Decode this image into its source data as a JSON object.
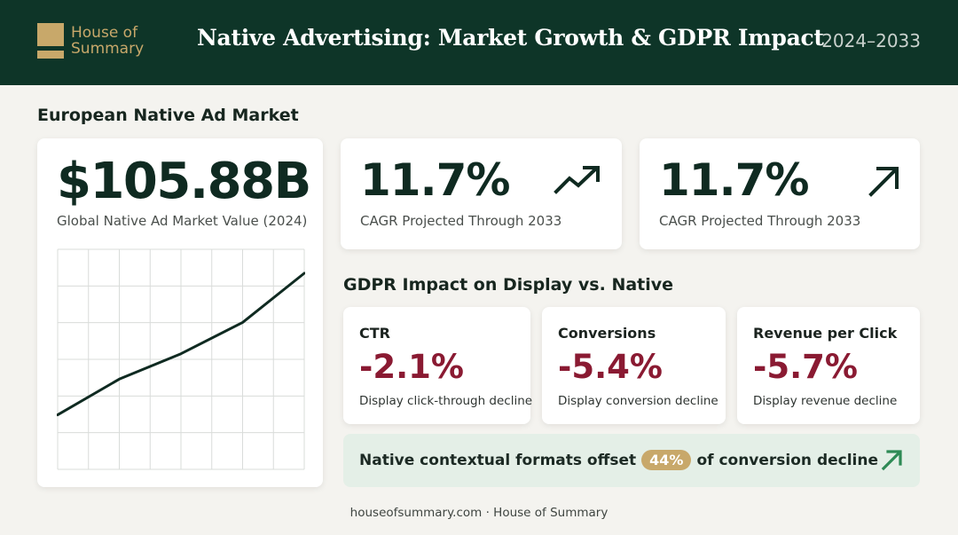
{
  "header": {
    "logo_line1": "House of",
    "logo_line2": "Summary",
    "title": "Native Advertising: Market Growth & GDPR Impact",
    "years": "2024–2033"
  },
  "market": {
    "section_title": "European Native Ad Market",
    "value": "$105.88B",
    "label": "Global Native Ad Market Value (2024)",
    "trend": [
      0.05,
      0.29,
      0.46,
      0.67,
      1.0
    ]
  },
  "cagr_cards": [
    {
      "value": "11.7%",
      "label": "CAGR Projected Through 2033",
      "icon": "trending-up-icon"
    },
    {
      "value": "11.7%",
      "label": "CAGR Projected Through 2033",
      "icon": "arrow-up-right-icon"
    }
  ],
  "gdpr": {
    "section_title": "GDPR Impact on Display vs. Native",
    "cards": [
      {
        "label": "CTR",
        "value": "-2.1%",
        "desc": "Display click-through decline"
      },
      {
        "label": "Conversions",
        "value": "-5.4%",
        "desc": "Display conversion decline"
      },
      {
        "label": "Revenue per Click",
        "value": "-5.7%",
        "desc": "Display revenue decline"
      }
    ]
  },
  "callout": {
    "prefix": "Native contextual formats offset",
    "pill": "44%",
    "suffix": "of conversion decline",
    "icon": "arrow-up-right-icon"
  },
  "footer": "houseofsummary.com · House of Summary",
  "colors": {
    "header_bg": "#0e3528",
    "gold": "#c8a86a",
    "negative": "#8a1a32",
    "callout_bg": "#e4efe7",
    "callout_arrow": "#2e8a55"
  }
}
